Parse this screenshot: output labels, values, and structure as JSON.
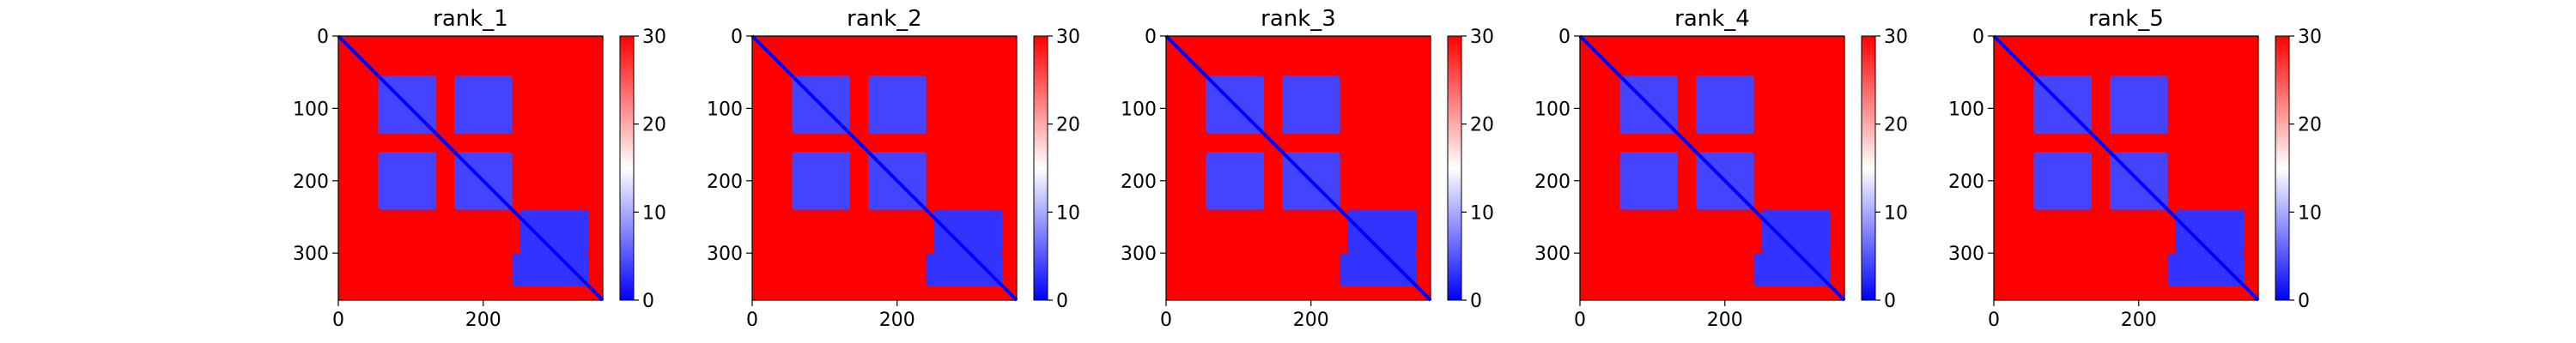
{
  "figure": {
    "panels_count_label": "",
    "colors": {
      "low": "#0000ff",
      "mid": "#ffffff",
      "high": "#ff0000",
      "axis": "#000000"
    }
  },
  "chart_data": [
    {
      "type": "heatmap",
      "title": "rank_1",
      "xlabel": "",
      "ylabel": "",
      "x_range": [
        0,
        365
      ],
      "y_range": [
        0,
        365
      ],
      "x_ticks": [
        0,
        200
      ],
      "y_ticks": [
        0,
        100,
        200,
        300
      ],
      "colorbar": {
        "min": 0,
        "max": 30,
        "ticks": [
          0,
          10,
          20,
          30
        ],
        "colormap": "bwr"
      },
      "diagonal": true,
      "blocks": [
        {
          "x": [
            55,
            135
          ],
          "y": [
            55,
            135
          ],
          "value": 4
        },
        {
          "x": [
            160,
            240
          ],
          "y": [
            55,
            135
          ],
          "value": 4
        },
        {
          "x": [
            55,
            135
          ],
          "y": [
            160,
            240
          ],
          "value": 4
        },
        {
          "x": [
            160,
            240
          ],
          "y": [
            160,
            240
          ],
          "value": 4
        },
        {
          "x": [
            250,
            345
          ],
          "y": [
            240,
            300
          ],
          "value": 3
        },
        {
          "x": [
            240,
            345
          ],
          "y": [
            300,
            345
          ],
          "value": 3
        }
      ]
    },
    {
      "type": "heatmap",
      "title": "rank_2",
      "xlabel": "",
      "ylabel": "",
      "x_range": [
        0,
        365
      ],
      "y_range": [
        0,
        365
      ],
      "x_ticks": [
        0,
        200
      ],
      "y_ticks": [
        0,
        100,
        200,
        300
      ],
      "colorbar": {
        "min": 0,
        "max": 30,
        "ticks": [
          0,
          10,
          20,
          30
        ],
        "colormap": "bwr"
      },
      "diagonal": true,
      "blocks": [
        {
          "x": [
            55,
            135
          ],
          "y": [
            55,
            135
          ],
          "value": 4
        },
        {
          "x": [
            160,
            240
          ],
          "y": [
            55,
            135
          ],
          "value": 4
        },
        {
          "x": [
            55,
            135
          ],
          "y": [
            160,
            240
          ],
          "value": 4
        },
        {
          "x": [
            160,
            240
          ],
          "y": [
            160,
            240
          ],
          "value": 4
        },
        {
          "x": [
            250,
            345
          ],
          "y": [
            240,
            300
          ],
          "value": 3
        },
        {
          "x": [
            240,
            345
          ],
          "y": [
            300,
            345
          ],
          "value": 3
        }
      ]
    },
    {
      "type": "heatmap",
      "title": "rank_3",
      "xlabel": "",
      "ylabel": "",
      "x_range": [
        0,
        365
      ],
      "y_range": [
        0,
        365
      ],
      "x_ticks": [
        0,
        200
      ],
      "y_ticks": [
        0,
        100,
        200,
        300
      ],
      "colorbar": {
        "min": 0,
        "max": 30,
        "ticks": [
          0,
          10,
          20,
          30
        ],
        "colormap": "bwr"
      },
      "diagonal": true,
      "blocks": [
        {
          "x": [
            55,
            135
          ],
          "y": [
            55,
            135
          ],
          "value": 4
        },
        {
          "x": [
            160,
            240
          ],
          "y": [
            55,
            135
          ],
          "value": 4
        },
        {
          "x": [
            55,
            135
          ],
          "y": [
            160,
            240
          ],
          "value": 4
        },
        {
          "x": [
            160,
            240
          ],
          "y": [
            160,
            240
          ],
          "value": 4
        },
        {
          "x": [
            250,
            345
          ],
          "y": [
            240,
            300
          ],
          "value": 3
        },
        {
          "x": [
            240,
            345
          ],
          "y": [
            300,
            345
          ],
          "value": 3
        }
      ]
    },
    {
      "type": "heatmap",
      "title": "rank_4",
      "xlabel": "",
      "ylabel": "",
      "x_range": [
        0,
        365
      ],
      "y_range": [
        0,
        365
      ],
      "x_ticks": [
        0,
        200
      ],
      "y_ticks": [
        0,
        100,
        200,
        300
      ],
      "colorbar": {
        "min": 0,
        "max": 30,
        "ticks": [
          0,
          10,
          20,
          30
        ],
        "colormap": "bwr"
      },
      "diagonal": true,
      "blocks": [
        {
          "x": [
            55,
            135
          ],
          "y": [
            55,
            135
          ],
          "value": 4
        },
        {
          "x": [
            160,
            240
          ],
          "y": [
            55,
            135
          ],
          "value": 4
        },
        {
          "x": [
            55,
            135
          ],
          "y": [
            160,
            240
          ],
          "value": 4
        },
        {
          "x": [
            160,
            240
          ],
          "y": [
            160,
            240
          ],
          "value": 4
        },
        {
          "x": [
            250,
            345
          ],
          "y": [
            240,
            300
          ],
          "value": 3
        },
        {
          "x": [
            240,
            345
          ],
          "y": [
            300,
            345
          ],
          "value": 3
        }
      ]
    },
    {
      "type": "heatmap",
      "title": "rank_5",
      "xlabel": "",
      "ylabel": "",
      "x_range": [
        0,
        365
      ],
      "y_range": [
        0,
        365
      ],
      "x_ticks": [
        0,
        200
      ],
      "y_ticks": [
        0,
        100,
        200,
        300
      ],
      "colorbar": {
        "min": 0,
        "max": 30,
        "ticks": [
          0,
          10,
          20,
          30
        ],
        "colormap": "bwr"
      },
      "diagonal": true,
      "blocks": [
        {
          "x": [
            55,
            135
          ],
          "y": [
            55,
            135
          ],
          "value": 4
        },
        {
          "x": [
            160,
            240
          ],
          "y": [
            55,
            135
          ],
          "value": 4
        },
        {
          "x": [
            55,
            135
          ],
          "y": [
            160,
            240
          ],
          "value": 4
        },
        {
          "x": [
            160,
            240
          ],
          "y": [
            160,
            240
          ],
          "value": 4
        },
        {
          "x": [
            250,
            345
          ],
          "y": [
            240,
            300
          ],
          "value": 3
        },
        {
          "x": [
            240,
            345
          ],
          "y": [
            300,
            345
          ],
          "value": 3
        }
      ]
    }
  ]
}
